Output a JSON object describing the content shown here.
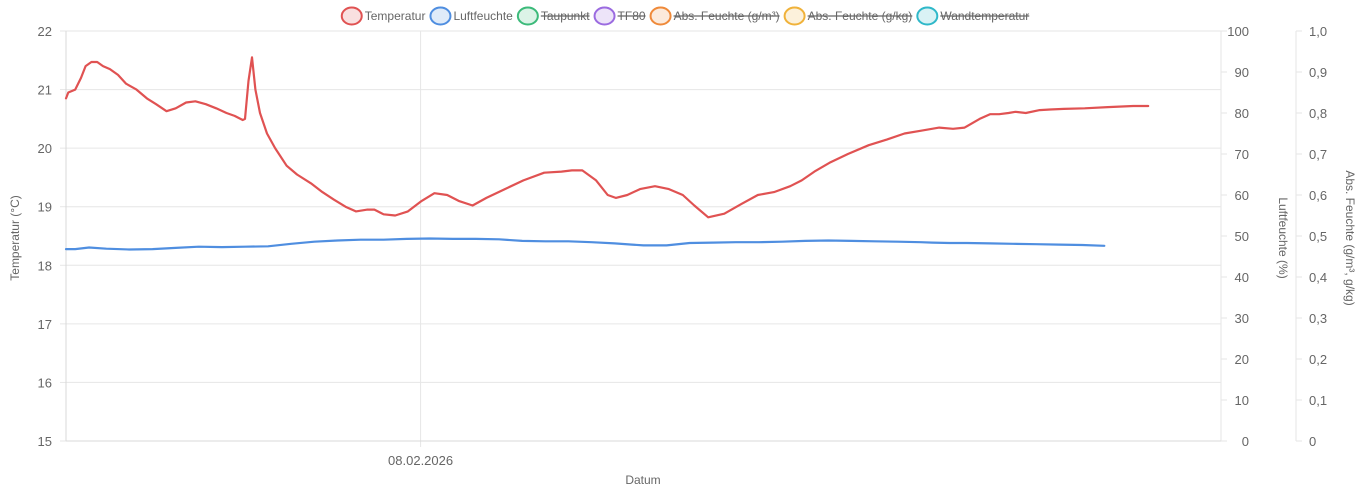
{
  "chart_data": {
    "type": "line",
    "xlabel": "Datum",
    "x_tick_labels": [
      "08.02.2026"
    ],
    "legend": {
      "placement": "top-center",
      "items": [
        {
          "label": "Temperatur",
          "color": "#e05252",
          "hidden": false
        },
        {
          "label": "Luftfeuchte",
          "color": "#4f8ee0",
          "hidden": false
        },
        {
          "label": "Taupunkt",
          "color": "#3cba7a",
          "hidden": true
        },
        {
          "label": "TF80",
          "color": "#9b6be0",
          "hidden": true
        },
        {
          "label": "Abs. Feuchte (g/m³)",
          "color": "#ef8a3a",
          "hidden": true
        },
        {
          "label": "Abs. Feuchte (g/kg)",
          "color": "#f0b23a",
          "hidden": true
        },
        {
          "label": "Wandtemperatur",
          "color": "#2fb8c9",
          "hidden": true
        }
      ]
    },
    "axes": {
      "y_left": {
        "title": "Temperatur (°C)",
        "min": 15,
        "max": 22,
        "ticks": [
          "15",
          "16",
          "17",
          "18",
          "19",
          "20",
          "21",
          "22"
        ]
      },
      "y_right1": {
        "title": "Luftfeuchte (%)",
        "min": 0,
        "max": 100,
        "ticks": [
          "0",
          "10",
          "20",
          "30",
          "40",
          "50",
          "60",
          "70",
          "80",
          "90",
          "100"
        ]
      },
      "y_right2": {
        "title": "Abs. Feuchte (g/m³, g/kg)",
        "min": 0,
        "max": 1,
        "ticks": [
          "0",
          "0,1",
          "0,2",
          "0,3",
          "0,4",
          "0,5",
          "0,6",
          "0,7",
          "0,8",
          "0,9",
          "1,0"
        ]
      }
    },
    "grid": true,
    "x_range": [
      0,
      100
    ],
    "x_tick_positions": [
      30.7
    ],
    "series": [
      {
        "name": "Temperatur",
        "axis": "y_left",
        "color": "#e05252",
        "x": [
          0,
          0.2,
          0.8,
          1.3,
          1.7,
          2.2,
          2.7,
          3.2,
          3.8,
          4.5,
          5.2,
          6.1,
          7.0,
          7.8,
          8.7,
          9.5,
          10.4,
          11.2,
          12.1,
          13.0,
          13.9,
          14.6,
          15.3,
          15.5,
          15.8,
          16.1,
          16.4,
          16.8,
          17.4,
          18.1,
          19.1,
          20.0,
          21.2,
          22.2,
          23.2,
          24.2,
          25.1,
          26.1,
          26.7,
          27.5,
          28.5,
          29.6,
          30.8,
          31.9,
          33.0,
          34.0,
          35.2,
          36.4,
          38.0,
          39.6,
          41.4,
          42.9,
          43.8,
          44.7,
          45.9,
          46.9,
          47.6,
          48.6,
          49.7,
          51.0,
          52.2,
          53.4,
          54.4,
          55.6,
          57.0,
          58.5,
          59.9,
          61.3,
          62.7,
          63.7,
          64.8,
          66.1,
          67.7,
          69.5,
          71.1,
          72.6,
          74.1,
          75.6,
          76.8,
          77.8,
          79.1,
          80.0,
          80.8,
          81.6,
          82.2,
          83.1,
          84.3,
          85.2,
          86.4,
          88.2,
          90.2,
          92.4,
          93.7
        ],
        "values": [
          20.85,
          20.95,
          21.0,
          21.2,
          21.4,
          21.47,
          21.47,
          21.4,
          21.35,
          21.25,
          21.1,
          21.0,
          20.85,
          20.75,
          20.63,
          20.68,
          20.78,
          20.8,
          20.75,
          20.68,
          20.6,
          20.55,
          20.48,
          20.5,
          21.15,
          21.55,
          21.0,
          20.6,
          20.25,
          20.0,
          19.7,
          19.55,
          19.4,
          19.25,
          19.12,
          19.0,
          18.92,
          18.95,
          18.95,
          18.87,
          18.85,
          18.92,
          19.1,
          19.23,
          19.2,
          19.1,
          19.02,
          19.15,
          19.3,
          19.45,
          19.58,
          19.6,
          19.62,
          19.62,
          19.45,
          19.2,
          19.15,
          19.2,
          19.3,
          19.35,
          19.3,
          19.2,
          19.02,
          18.82,
          18.88,
          19.05,
          19.2,
          19.25,
          19.35,
          19.45,
          19.6,
          19.75,
          19.9,
          20.05,
          20.15,
          20.25,
          20.3,
          20.35,
          20.33,
          20.35,
          20.5,
          20.58,
          20.58,
          20.6,
          20.62,
          20.6,
          20.65,
          20.66,
          20.67,
          20.68,
          20.7,
          20.72,
          20.72
        ]
      },
      {
        "name": "Luftfeuchte",
        "axis": "y_right1",
        "color": "#4f8ee0",
        "x": [
          0,
          0.8,
          2.0,
          3.5,
          5.5,
          7.5,
          9.5,
          11.5,
          13.5,
          15.5,
          17.5,
          19.5,
          21.5,
          23.5,
          25.5,
          27.5,
          29.5,
          31.5,
          33.5,
          35.5,
          37.5,
          39.5,
          41.5,
          43.5,
          45.5,
          47.5,
          49.0,
          50.0,
          52.0,
          54.0,
          56.0,
          58.0,
          60.0,
          62.0,
          64.0,
          66.0,
          68.0,
          70.0,
          72.0,
          74.0,
          75.0,
          76.5,
          78.0,
          80.0,
          82.0,
          84.0,
          86.0,
          88.0,
          89.9
        ],
        "values": [
          46.8,
          46.8,
          47.2,
          46.9,
          46.7,
          46.8,
          47.1,
          47.4,
          47.3,
          47.4,
          47.5,
          48.1,
          48.6,
          48.9,
          49.1,
          49.1,
          49.3,
          49.4,
          49.3,
          49.3,
          49.2,
          48.8,
          48.7,
          48.7,
          48.5,
          48.2,
          47.9,
          47.7,
          47.7,
          48.3,
          48.4,
          48.5,
          48.5,
          48.6,
          48.8,
          48.9,
          48.8,
          48.7,
          48.6,
          48.5,
          48.4,
          48.3,
          48.3,
          48.2,
          48.1,
          48.0,
          47.9,
          47.8,
          47.6
        ]
      }
    ]
  }
}
